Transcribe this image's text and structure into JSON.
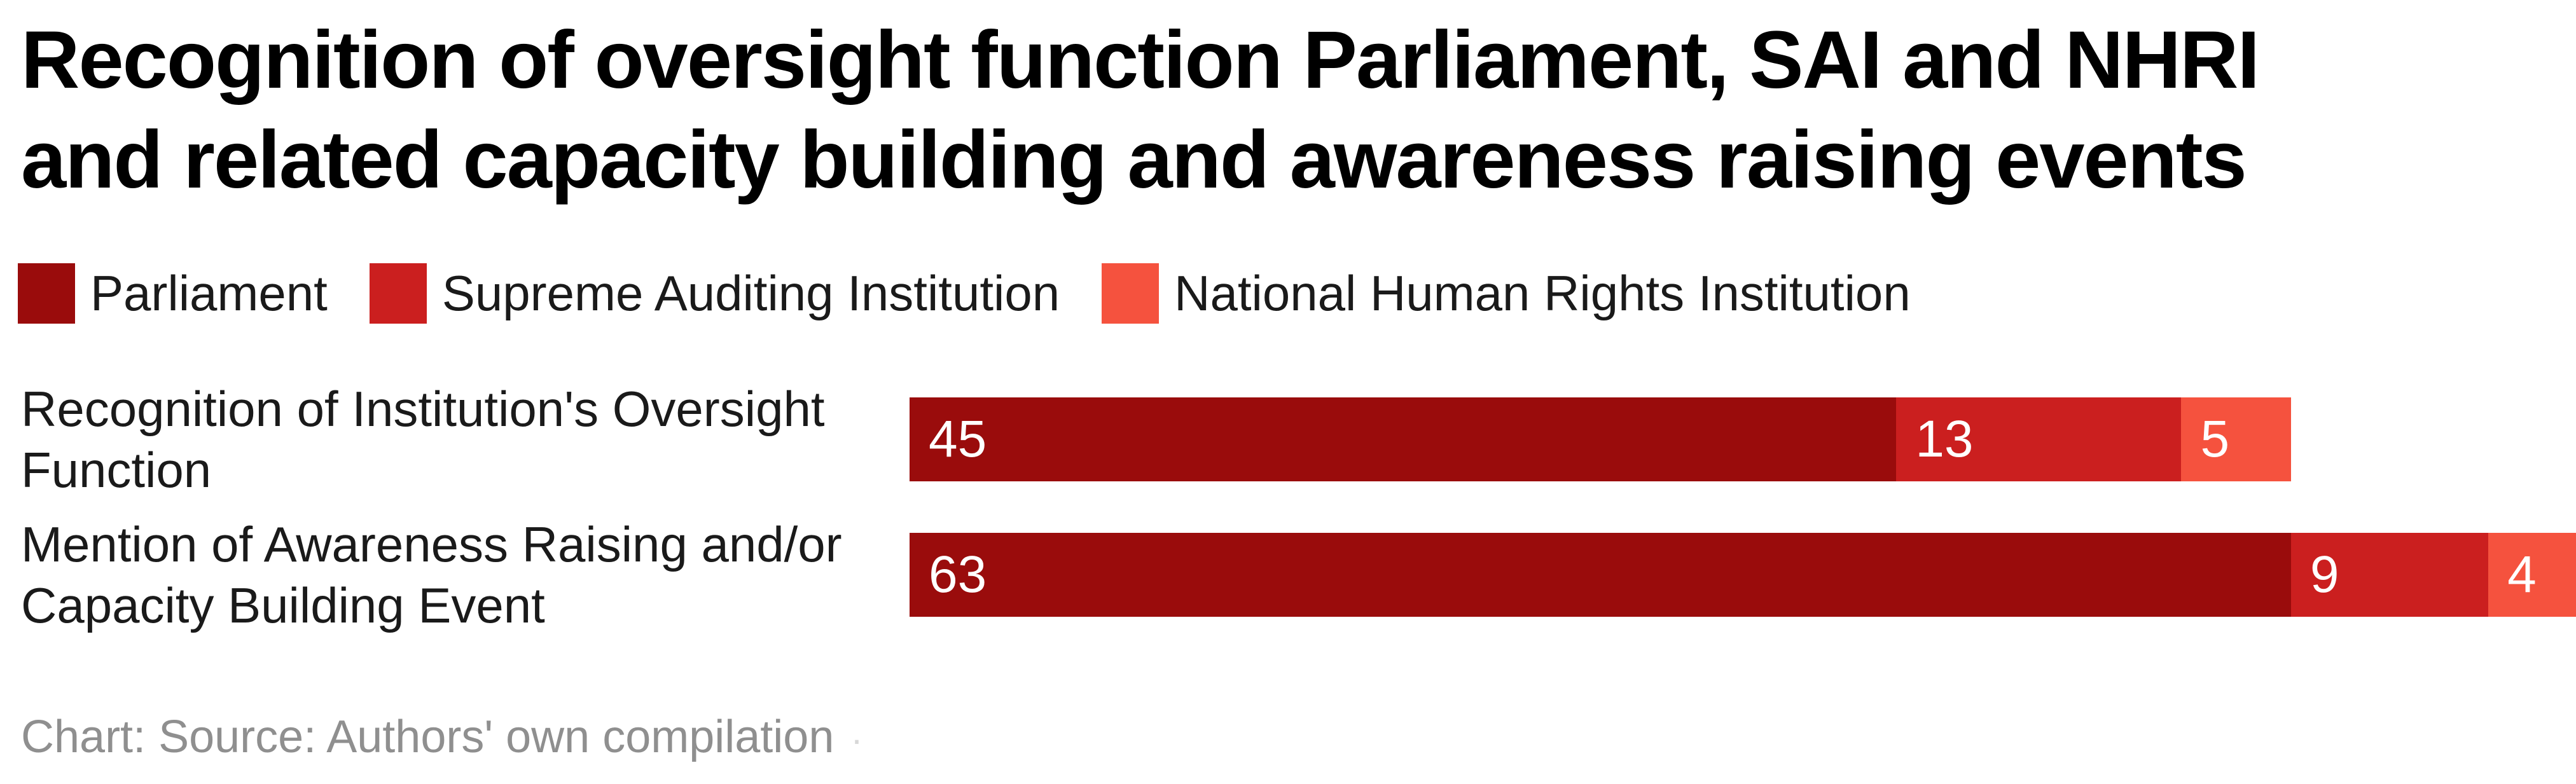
{
  "page": {
    "background": "#ffffff"
  },
  "title": {
    "text": "Recognition of oversight function Parliament, SAI and NHRI and related capacity building and awareness raising events",
    "lines": [
      "Recognition of oversight function Parliament, SAI and NHRI",
      "and related capacity building and awareness raising events"
    ]
  },
  "rows": [
    {
      "line1": "Recognition of Institution's Oversight",
      "line2": "Function"
    },
    {
      "line1": "Mention of Awareness Raising and/or",
      "line2": "Capacity Building Event"
    }
  ],
  "footer": {
    "text": "Chart: Source: Authors' own compilation",
    "trailing_mark": "·"
  },
  "chart_data": {
    "type": "bar",
    "orientation": "horizontal",
    "stacked": true,
    "title": "Recognition of oversight function Parliament, SAI and NHRI and related capacity building and awareness raising events",
    "categories": [
      "Recognition of Institution's Oversight Function",
      "Mention of Awareness Raising and/or Capacity Building Event"
    ],
    "series": [
      {
        "name": "Parliament",
        "color": "#9A0C0C",
        "values": [
          45,
          63
        ]
      },
      {
        "name": "Supreme Auditing Institution",
        "color": "#CB1F1F",
        "values": [
          13,
          9
        ]
      },
      {
        "name": "National Human Rights Institution",
        "color": "#F5523E",
        "values": [
          5,
          4
        ]
      }
    ],
    "x_max": 76,
    "axis_visible": false,
    "grid": false,
    "value_labels": "inside-start",
    "value_label_color": "#ffffff",
    "legend_position": "top",
    "source_note": "Chart: Source: Authors' own compilation"
  }
}
